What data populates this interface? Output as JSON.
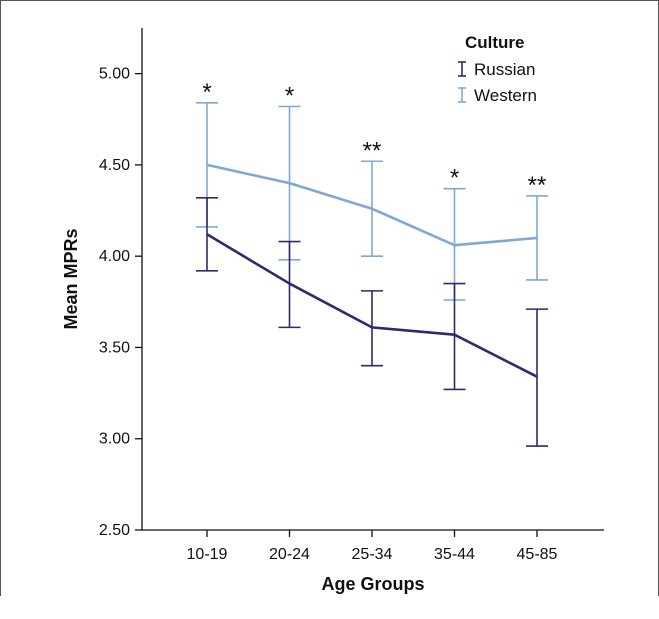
{
  "chart_data": {
    "type": "line",
    "xlabel": "Age Groups",
    "ylabel": "Mean MPRs",
    "categories": [
      "10-19",
      "20-24",
      "25-34",
      "35-44",
      "45-85"
    ],
    "ylim": [
      2.5,
      5.25
    ],
    "yticks": [
      "2.50",
      "3.00",
      "3.50",
      "4.00",
      "4.50",
      "5.00"
    ],
    "legend": {
      "title": "Culture",
      "position": "top-right"
    },
    "series": [
      {
        "name": "Russian",
        "color": "#2e2a6b",
        "values": [
          4.12,
          3.85,
          3.61,
          3.57,
          3.34
        ],
        "err_low": [
          3.92,
          3.61,
          3.4,
          3.27,
          2.96
        ],
        "err_high": [
          4.32,
          4.08,
          3.81,
          3.85,
          3.71
        ]
      },
      {
        "name": "Western",
        "color": "#7fa8d4",
        "values": [
          4.5,
          4.4,
          4.26,
          4.06,
          4.1
        ],
        "err_low": [
          4.16,
          3.98,
          4.0,
          3.76,
          3.87
        ],
        "err_high": [
          4.84,
          4.82,
          4.52,
          4.37,
          4.33
        ]
      }
    ],
    "annotations": [
      "*",
      "*",
      "**",
      "*",
      "**"
    ]
  }
}
